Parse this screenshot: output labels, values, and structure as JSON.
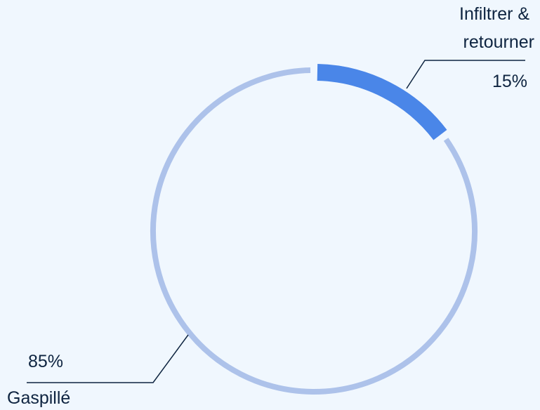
{
  "chart_data": {
    "type": "pie",
    "variant": "donut",
    "title": "",
    "slices": [
      {
        "label_lines": [
          "Infiltrer &",
          "retourner"
        ],
        "value": 15,
        "value_label": "15%",
        "color": "#4a86e8"
      },
      {
        "label_lines": [
          "Gaspillé"
        ],
        "value": 85,
        "value_label": "85%",
        "color": "#adc2ea"
      }
    ],
    "legend": "none",
    "background_color": "#f0f7fe",
    "text_color": "#0e2440"
  }
}
